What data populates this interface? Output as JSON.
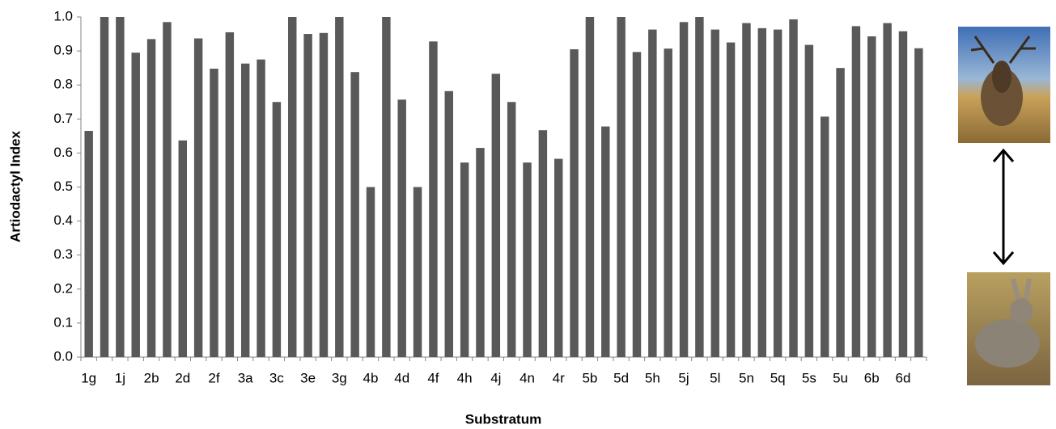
{
  "chart_data": {
    "type": "bar",
    "y_label": "Artiodactyl Index",
    "x_label": "Substratum",
    "categories": [
      "1g",
      null,
      "1j",
      null,
      "2b",
      null,
      "2d",
      null,
      "2f",
      null,
      "3a",
      null,
      "3c",
      null,
      "3e",
      null,
      "3g",
      null,
      "4b",
      null,
      "4d",
      null,
      "4f",
      null,
      "4h",
      null,
      "4j",
      null,
      "4n",
      null,
      "4r",
      null,
      "5b",
      null,
      "5d",
      null,
      "5h",
      null,
      "5j",
      null,
      "5l",
      null,
      "5n",
      null,
      "5q",
      null,
      "5s",
      null,
      "5u",
      null,
      "6b",
      null,
      "6d",
      null
    ],
    "values": [
      0.665,
      1.0,
      1.0,
      0.895,
      0.935,
      0.985,
      0.637,
      0.937,
      0.848,
      0.955,
      0.863,
      0.875,
      0.75,
      1.0,
      0.95,
      0.953,
      1.0,
      0.838,
      0.5,
      1.0,
      0.757,
      0.5,
      0.928,
      0.782,
      0.572,
      0.615,
      0.833,
      0.75,
      0.572,
      0.667,
      0.583,
      0.905,
      1.0,
      0.678,
      1.0,
      0.897,
      0.963,
      0.907,
      0.985,
      1.0,
      0.963,
      0.925,
      0.982,
      0.967,
      0.963,
      0.993,
      0.918,
      0.707,
      0.85,
      0.973,
      0.943,
      0.982,
      0.958,
      0.908
    ],
    "color": "#595959",
    "ylim": [
      0,
      1.0
    ],
    "yticks": [
      {
        "value": 0,
        "label": "0.0"
      },
      {
        "value": 0.1,
        "label": "0.1"
      },
      {
        "value": 0.2,
        "label": "0.2"
      },
      {
        "value": 0.3,
        "label": "0.3"
      },
      {
        "value": 0.4,
        "label": "0.4"
      },
      {
        "value": 0.5,
        "label": "0.5"
      },
      {
        "value": 0.6,
        "label": "0.6"
      },
      {
        "value": 0.7,
        "label": "0.7"
      },
      {
        "value": 0.8,
        "label": "0.8"
      },
      {
        "value": 0.9,
        "label": "0.9"
      },
      {
        "value": 1.0,
        "label": "1.0"
      }
    ],
    "grid": false
  }
}
